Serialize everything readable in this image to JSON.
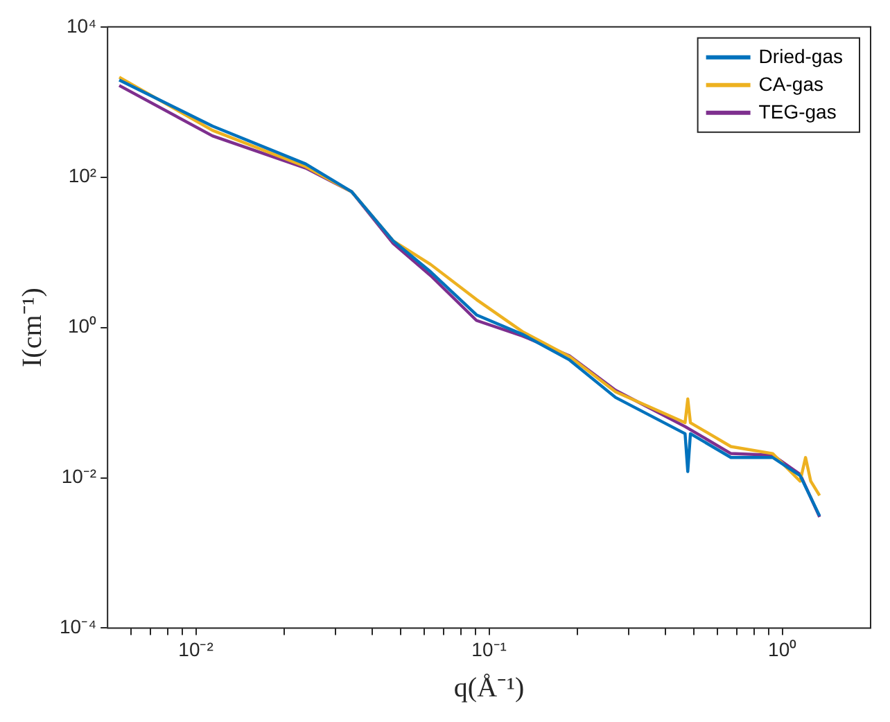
{
  "chart_data": {
    "type": "line",
    "xlabel": "q(Å⁻¹)",
    "ylabel": "I(cm⁻¹)",
    "log": "xy",
    "legend": "top right",
    "xlim": [
      0.005,
      2
    ],
    "ylim": [
      0.0001,
      10000
    ],
    "xticks": [
      {
        "value": 0.006,
        "label": null
      },
      {
        "value": 0.007,
        "label": null
      },
      {
        "value": 0.008,
        "label": null
      },
      {
        "value": 0.009,
        "label": null
      },
      {
        "value": 0.01,
        "label": "10⁻²"
      },
      {
        "value": 0.02,
        "label": null
      },
      {
        "value": 0.03,
        "label": null
      },
      {
        "value": 0.04,
        "label": null
      },
      {
        "value": 0.05,
        "label": null
      },
      {
        "value": 0.06,
        "label": null
      },
      {
        "value": 0.07,
        "label": null
      },
      {
        "value": 0.08,
        "label": null
      },
      {
        "value": 0.09,
        "label": null
      },
      {
        "value": 0.1,
        "label": "10⁻¹"
      },
      {
        "value": 0.2,
        "label": null
      },
      {
        "value": 0.3,
        "label": null
      },
      {
        "value": 0.4,
        "label": null
      },
      {
        "value": 0.5,
        "label": null
      },
      {
        "value": 0.6,
        "label": null
      },
      {
        "value": 0.7,
        "label": null
      },
      {
        "value": 0.8,
        "label": null
      },
      {
        "value": 0.9,
        "label": null
      },
      {
        "value": 1,
        "label": "10⁰"
      }
    ],
    "yticks": [
      {
        "value": 0.0001,
        "label": "10⁻⁴"
      },
      {
        "value": 0.01,
        "label": "10⁻²"
      },
      {
        "value": 1,
        "label": "10⁰"
      },
      {
        "value": 100,
        "label": "10²"
      },
      {
        "value": 10000,
        "label": "10⁴"
      }
    ],
    "series": [
      {
        "name": "Dried-gas",
        "color": "#0072bd",
        "x": [
          0.00548,
          0.0114,
          0.0237,
          0.034,
          0.0471,
          0.0632,
          0.0906,
          0.13,
          0.188,
          0.27,
          0.466,
          0.476,
          0.486,
          0.668,
          0.927,
          1.15,
          1.34
        ],
        "values": [
          1960,
          478,
          150,
          64,
          14.2,
          5.5,
          1.47,
          0.81,
          0.37,
          0.117,
          0.0386,
          0.0121,
          0.0386,
          0.0186,
          0.0186,
          0.0107,
          0.0031
        ]
      },
      {
        "name": "CA-gas",
        "color": "#edb120",
        "x": [
          0.00548,
          0.0114,
          0.0237,
          0.034,
          0.0471,
          0.0632,
          0.0906,
          0.13,
          0.188,
          0.27,
          0.466,
          0.476,
          0.486,
          0.668,
          0.927,
          1.15,
          1.2,
          1.25,
          1.34
        ],
        "values": [
          2140,
          420,
          138,
          64,
          14.2,
          6.9,
          2.35,
          0.88,
          0.41,
          0.139,
          0.054,
          0.112,
          0.054,
          0.026,
          0.021,
          0.009,
          0.0186,
          0.009,
          0.0058
        ]
      },
      {
        "name": "TEG-gas",
        "color": "#7e2f8e",
        "x": [
          0.00548,
          0.0114,
          0.0237,
          0.034,
          0.0471,
          0.0632,
          0.0906,
          0.13,
          0.188,
          0.27,
          0.466,
          0.668,
          0.927,
          1.15,
          1.34
        ],
        "values": [
          1660,
          354,
          132,
          64,
          13.1,
          4.9,
          1.24,
          0.77,
          0.42,
          0.146,
          0.048,
          0.021,
          0.02,
          0.0111,
          0.003
        ]
      }
    ]
  }
}
